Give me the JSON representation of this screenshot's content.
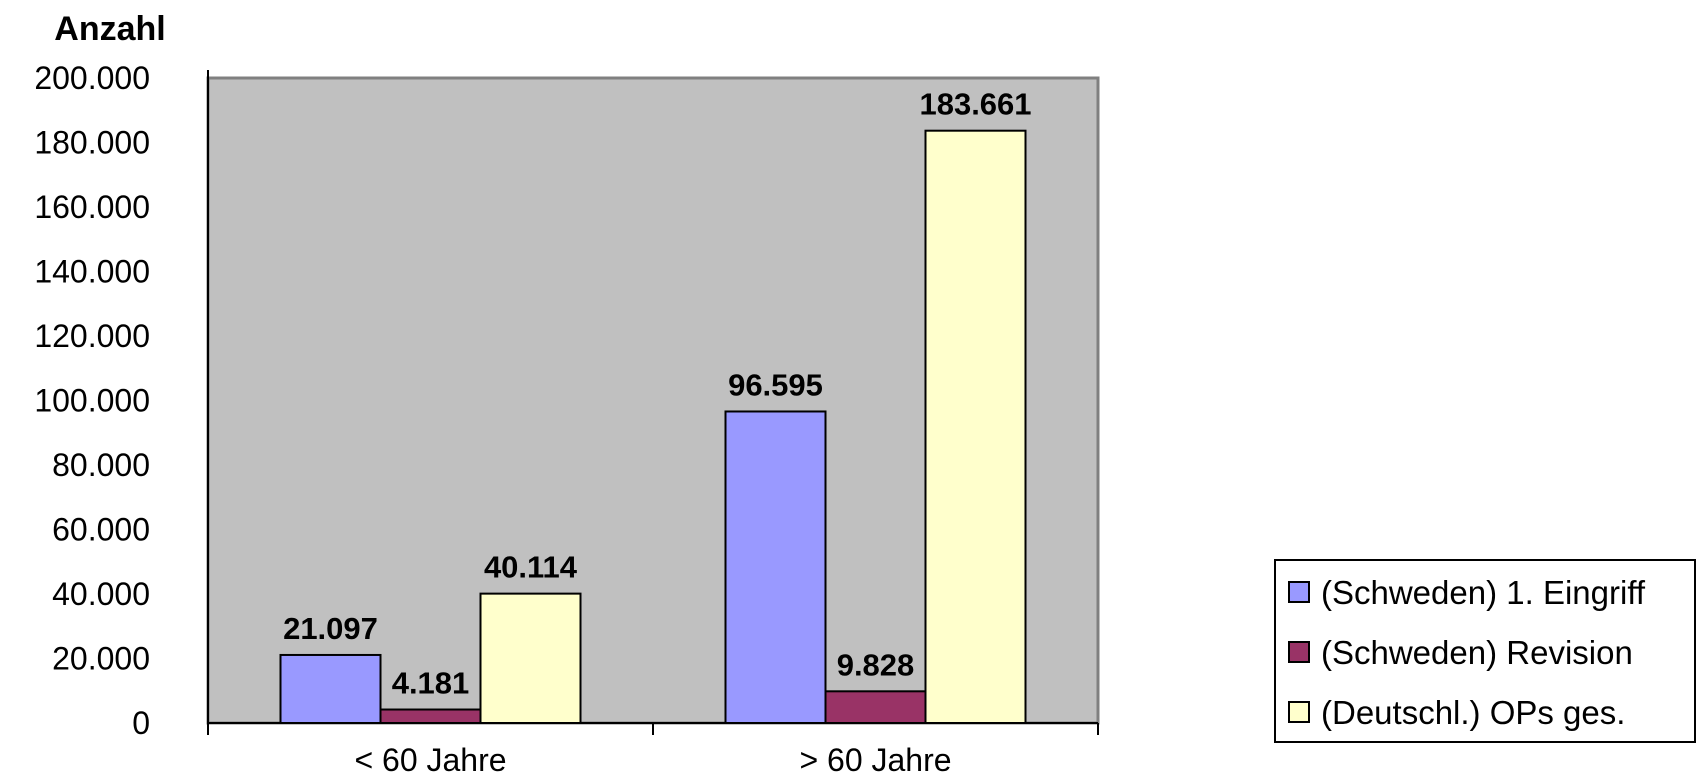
{
  "chart_data": {
    "type": "bar",
    "ylabel": "Anzahl",
    "xlabel": "",
    "categories": [
      "< 60 Jahre",
      "> 60 Jahre"
    ],
    "ylim": [
      0,
      200000
    ],
    "yticks": [
      "0",
      "20.000",
      "40.000",
      "60.000",
      "80.000",
      "100.000",
      "120.000",
      "140.000",
      "160.000",
      "180.000",
      "200.000"
    ],
    "series": [
      {
        "name": "(Schweden) 1. Eingriff",
        "color": "#9999ff",
        "values": [
          21097,
          96595
        ],
        "labels": [
          "21.097",
          "96.595"
        ]
      },
      {
        "name": "(Schweden) Revision",
        "color": "#993366",
        "values": [
          4181,
          9828
        ],
        "labels": [
          "4.181",
          "9.828"
        ]
      },
      {
        "name": "(Deutschl.) OPs ges.",
        "color": "#ffffcc",
        "values": [
          40114,
          183661
        ],
        "labels": [
          "40.114",
          "183.661"
        ]
      }
    ],
    "plot_background": "#c0c0c0",
    "grid": false,
    "legend_position": "right"
  }
}
